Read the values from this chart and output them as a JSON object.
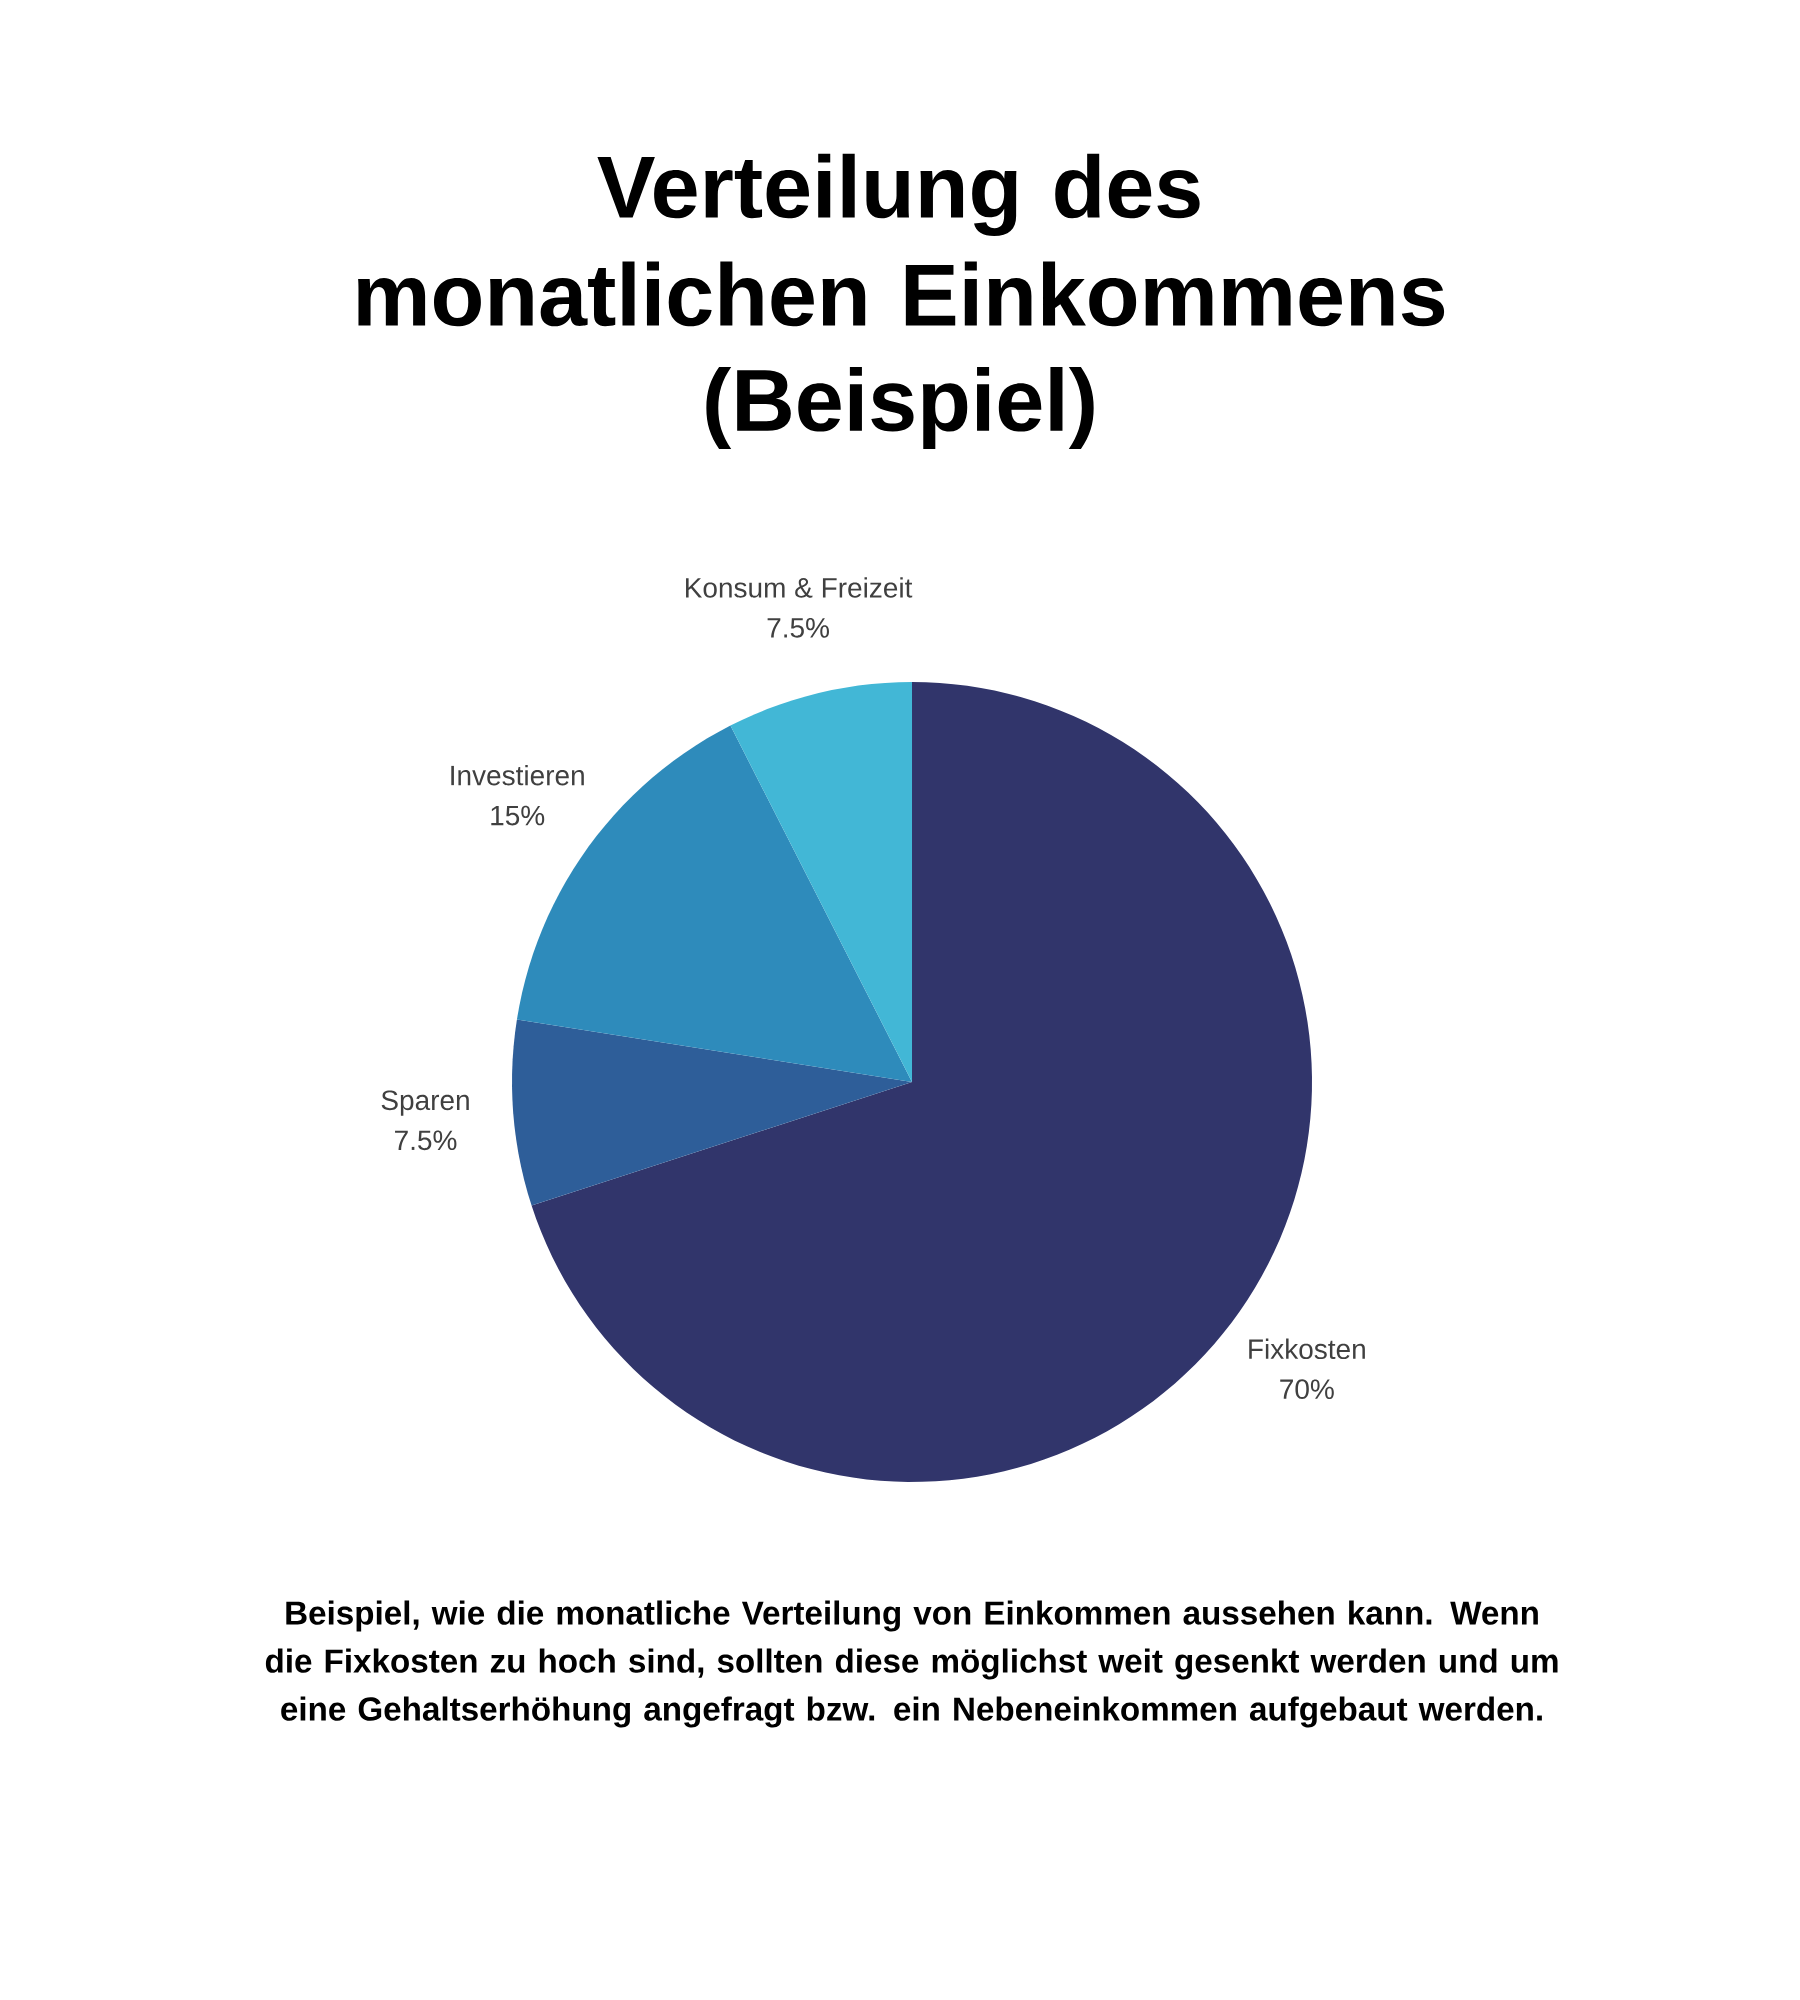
{
  "chart_data": {
    "type": "pie",
    "title": "Verteilung des monatlichen Einkommens",
    "subtitle": "(Beispiel)",
    "categories": [
      "Fixkosten",
      "Sparen",
      "Investieren",
      "Konsum & Freizeit"
    ],
    "values": [
      70,
      7.5,
      15,
      7.5
    ],
    "value_labels": [
      "70%",
      "7.5%",
      "15%",
      "7.5%"
    ],
    "colors": [
      "#31356b",
      "#2e5e99",
      "#2e8bbb",
      "#42b7d6"
    ],
    "annotations": [
      "Beispiel, wie die monatliche Verteilung von Einkommen aussehen kann. Wenn die Fixkosten zu hoch sind, sollten diese möglichst weit gesenkt werden und um eine Gehaltserhöhung angefragt bzw. ein Nebeneinkommen aufgebaut werden."
    ]
  }
}
